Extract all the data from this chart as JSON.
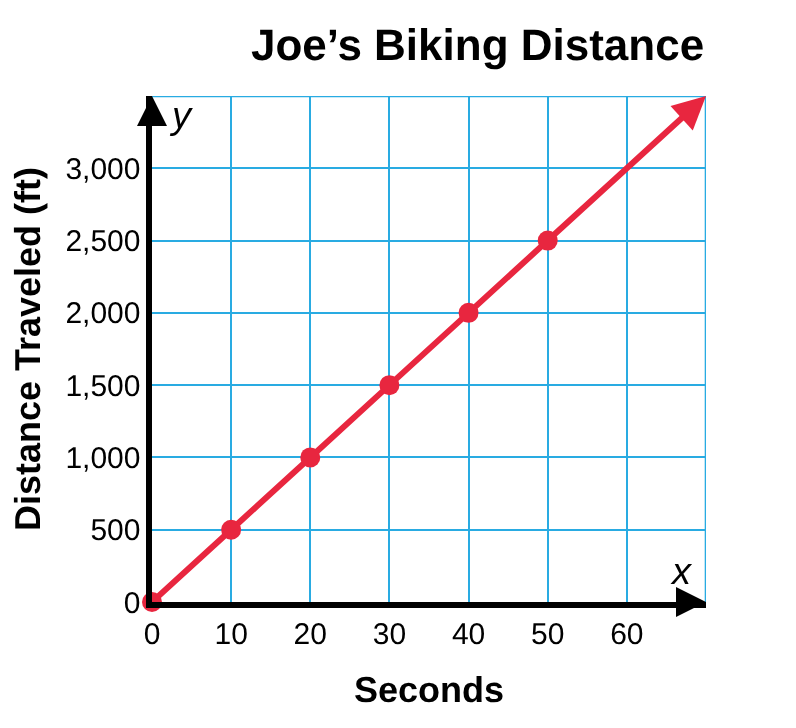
{
  "chart_data": {
    "type": "line",
    "title": "Joe’s Biking Distance",
    "xlabel": "Seconds",
    "ylabel": "Distance Traveled (ft)",
    "annotations": [
      "x",
      "y"
    ],
    "series": [
      {
        "color": "#e8263f",
        "x": [
          0,
          10,
          20,
          30,
          40,
          50
        ],
        "values": [
          0,
          500,
          1000,
          1500,
          2000,
          2500
        ],
        "marker": "circle"
      }
    ],
    "xlim": [
      0,
      70
    ],
    "ylim": [
      0,
      3500
    ],
    "xticks": [
      0,
      10,
      20,
      30,
      40,
      50,
      60
    ],
    "yticks": [
      0,
      {
        "value": 500,
        "label": "500"
      },
      {
        "value": 1000,
        "label": "1,000"
      },
      {
        "value": 1500,
        "label": "1,500"
      },
      {
        "value": 2000,
        "label": "2,000"
      },
      {
        "value": 2500,
        "label": "2,500"
      },
      {
        "value": 3000,
        "label": "3,000"
      }
    ],
    "grid": true
  }
}
